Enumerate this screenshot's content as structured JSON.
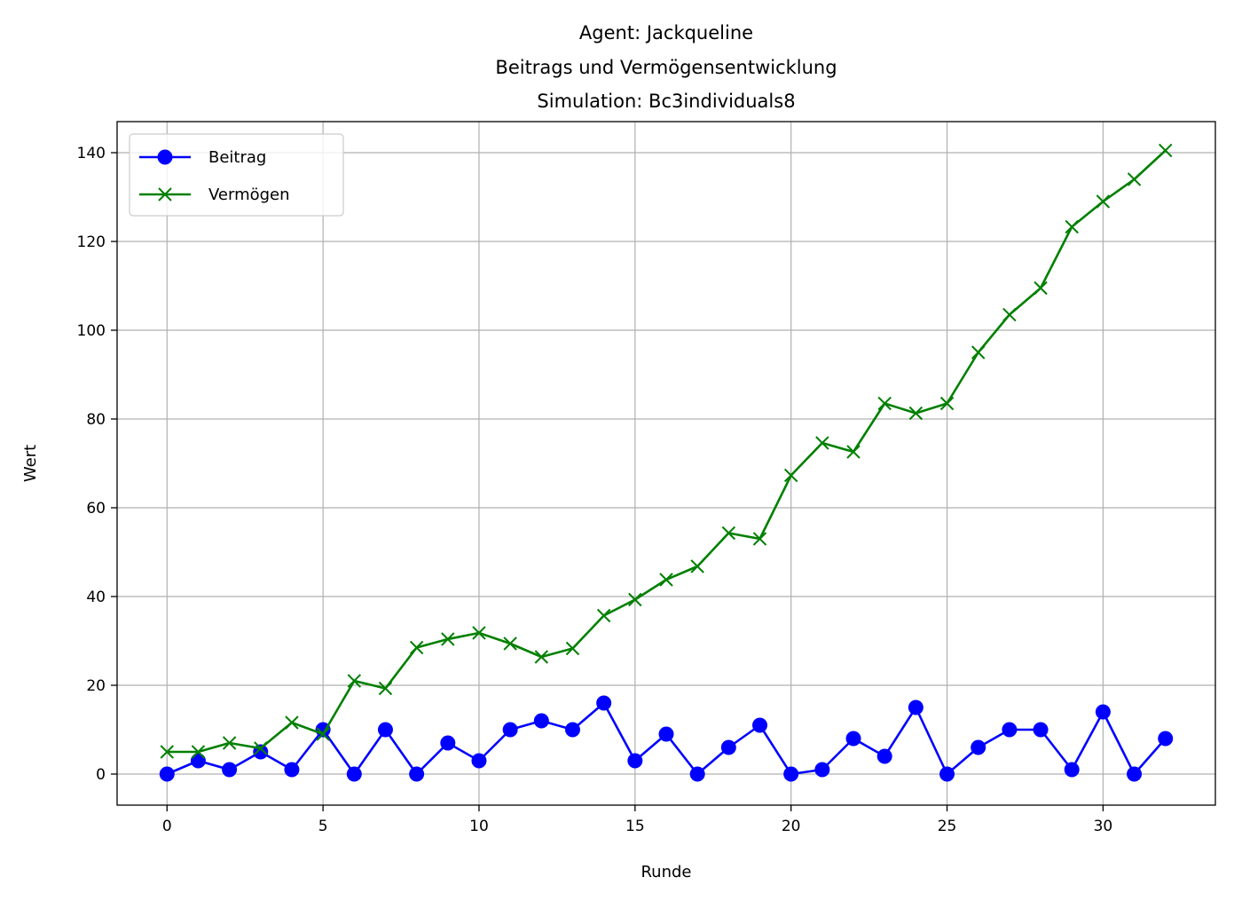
{
  "chart_data": {
    "type": "line",
    "title_lines": [
      "Agent: Jackqueline",
      "Beitrags und Vermögensentwicklung",
      "Simulation: Bc3individuals8"
    ],
    "xlabel": "Runde",
    "ylabel": "Wert",
    "xlim": [
      -1.6,
      33.6
    ],
    "ylim": [
      -7,
      147
    ],
    "xticks": [
      0,
      5,
      10,
      15,
      20,
      25,
      30
    ],
    "yticks": [
      0,
      20,
      40,
      60,
      80,
      100,
      120,
      140
    ],
    "grid": true,
    "legend_position": "upper-left",
    "x": [
      0,
      1,
      2,
      3,
      4,
      5,
      6,
      7,
      8,
      9,
      10,
      11,
      12,
      13,
      14,
      15,
      16,
      17,
      18,
      19,
      20,
      21,
      22,
      23,
      24,
      25,
      26,
      27,
      28,
      29,
      30,
      31,
      32
    ],
    "series": [
      {
        "name": "Beitrag",
        "color": "#0000ff",
        "marker": "circle",
        "values": [
          0,
          3,
          1,
          5,
          1,
          10,
          0,
          10,
          0,
          7,
          3,
          10,
          12,
          10,
          16,
          3,
          9,
          0,
          6,
          11,
          0,
          1,
          8,
          4,
          15,
          0,
          6,
          10,
          10,
          1,
          14,
          0,
          8
        ]
      },
      {
        "name": "Vermögen",
        "color": "#008000",
        "marker": "x",
        "values": [
          5,
          5,
          7,
          5.8,
          11.6,
          9,
          21,
          19.3,
          28.5,
          30.4,
          31.8,
          29.4,
          26.4,
          28.3,
          35.7,
          39.3,
          43.8,
          46.8,
          54.3,
          53,
          67.3,
          74.6,
          72.6,
          83.5,
          81.3,
          83.5,
          95,
          103.5,
          109.5,
          123.3,
          129,
          134,
          140.5
        ]
      }
    ]
  }
}
